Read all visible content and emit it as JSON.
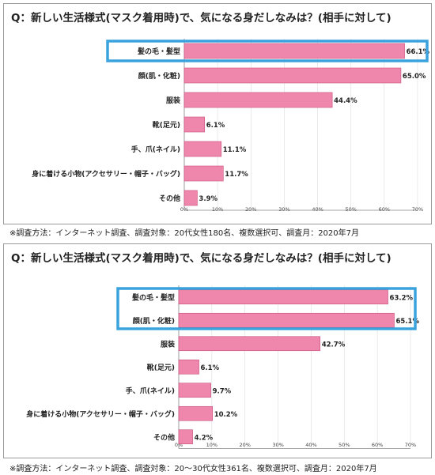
{
  "chart_data": [
    {
      "type": "bar",
      "orientation": "horizontal",
      "title": "Q：新しい生活様式(マスク着用時)で、気になる身だしなみは？(相手に対して)",
      "categories": [
        "髪の毛・髪型",
        "顔(肌・化粧)",
        "服装",
        "靴(足元)",
        "手、爪(ネイル)",
        "身に着ける小物(アクセサリー・帽子・バッグ)",
        "その他"
      ],
      "values": [
        66.1,
        65.0,
        44.4,
        6.1,
        11.1,
        11.7,
        3.9
      ],
      "value_labels": [
        "66.1%",
        "65.0%",
        "44.4%",
        "6.1%",
        "11.1%",
        "11.7%",
        "3.9%"
      ],
      "xlim": [
        0,
        70
      ],
      "ticks": [
        "0%",
        "10%",
        "20%",
        "30%",
        "40%",
        "50%",
        "60%",
        "70%"
      ],
      "highlighted": [
        "髪の毛・髪型"
      ],
      "note": "※調査方法：インターネット調査、調査対象：20代女性180名、複数選択可、調査月：2020年7月"
    },
    {
      "type": "bar",
      "orientation": "horizontal",
      "title": "Q：新しい生活様式(マスク着用時)で、気になる身だしなみは？(相手に対して)",
      "categories": [
        "髪の毛・髪型",
        "顔(肌・化粧)",
        "服装",
        "靴(足元)",
        "手、爪(ネイル)",
        "身に着ける小物(アクセサリー・帽子・バッグ)",
        "その他"
      ],
      "values": [
        63.2,
        65.1,
        42.7,
        6.1,
        9.7,
        10.2,
        4.2
      ],
      "value_labels": [
        "63.2%",
        "65.1%",
        "42.7%",
        "6.1%",
        "9.7%",
        "10.2%",
        "4.2%"
      ],
      "xlim": [
        0,
        70
      ],
      "ticks": [
        "0%",
        "10%",
        "20%",
        "30%",
        "40%",
        "50%",
        "60%",
        "70%"
      ],
      "highlighted": [
        "髪の毛・髪型",
        "顔(肌・化粧)"
      ],
      "note": "※調査方法：インターネット調査、調査対象：20～30代女性361名、複数選択可、調査月：2020年7月"
    }
  ],
  "colors": {
    "bar_fill": "#ef86ab",
    "bar_stroke": "#c8507c",
    "highlight_box": "#3aa3dd",
    "axis": "#888888",
    "grid": "#dddddd"
  }
}
